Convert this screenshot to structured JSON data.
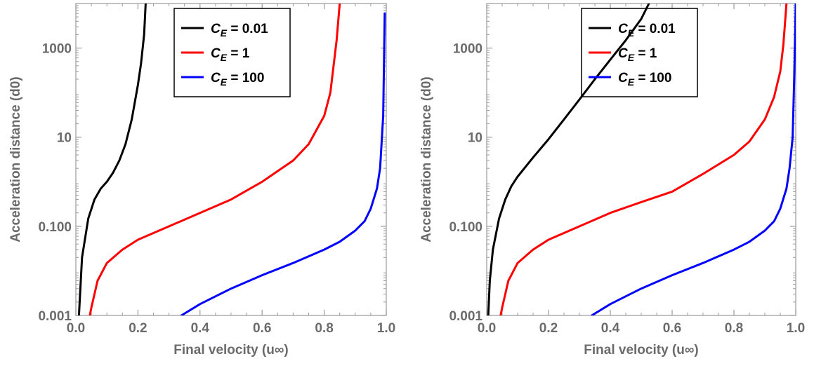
{
  "chart_data": [
    {
      "type": "line",
      "title": "",
      "xlabel": "Final velocity (u∞)",
      "ylabel": "Acceleration distance (d0)",
      "xlim": [
        0.0,
        1.0
      ],
      "ylim": [
        0.001,
        10000
      ],
      "yscale": "log",
      "x_ticks": [
        "0.0",
        "0.2",
        "0.4",
        "0.6",
        "0.8",
        "1.0"
      ],
      "y_ticks": [
        "0.001",
        "0.100",
        "10",
        "1000"
      ],
      "legend_position": "top-center",
      "grid": false,
      "series": [
        {
          "name": "C_E = 0.01",
          "color": "#000000",
          "x": [
            0.01,
            0.02,
            0.04,
            0.06,
            0.08,
            0.1,
            0.12,
            0.14,
            0.16,
            0.18,
            0.2,
            0.21,
            0.22,
            0.225
          ],
          "y": [
            0.001,
            0.02,
            0.15,
            0.4,
            0.7,
            1.0,
            1.6,
            3.0,
            7.0,
            25,
            150,
            450,
            2000,
            10000
          ]
        },
        {
          "name": "C_E = 1",
          "color": "#ff0000",
          "x": [
            0.045,
            0.05,
            0.07,
            0.1,
            0.15,
            0.2,
            0.3,
            0.4,
            0.5,
            0.6,
            0.7,
            0.75,
            0.8,
            0.82,
            0.84,
            0.85
          ],
          "y": [
            0.001,
            0.0015,
            0.006,
            0.015,
            0.03,
            0.05,
            0.1,
            0.2,
            0.4,
            1.0,
            3.0,
            7.0,
            30,
            100,
            1500,
            10000
          ]
        },
        {
          "name": "C_E = 100",
          "color": "#0000ff",
          "x": [
            0.34,
            0.4,
            0.5,
            0.6,
            0.7,
            0.8,
            0.85,
            0.9,
            0.93,
            0.95,
            0.97,
            0.98,
            0.99,
            0.995
          ],
          "y": [
            0.001,
            0.0018,
            0.004,
            0.008,
            0.015,
            0.03,
            0.045,
            0.08,
            0.13,
            0.25,
            0.7,
            2.0,
            30,
            6000
          ]
        }
      ],
      "legend": {
        "entries": [
          {
            "prefix": "C",
            "sub": "E",
            "value": " = 0.01"
          },
          {
            "prefix": "C",
            "sub": "E",
            "value": " = 1"
          },
          {
            "prefix": "C",
            "sub": "E",
            "value": " = 100"
          }
        ]
      }
    },
    {
      "type": "line",
      "title": "",
      "xlabel": "Final velocity (u∞)",
      "ylabel": "Acceleration distance (d0)",
      "xlim": [
        0.0,
        1.0
      ],
      "ylim": [
        0.001,
        10000
      ],
      "yscale": "log",
      "x_ticks": [
        "0.0",
        "0.2",
        "0.4",
        "0.6",
        "0.8",
        "1.0"
      ],
      "y_ticks": [
        "0.001",
        "0.100",
        "10",
        "1000"
      ],
      "legend_position": "top-center",
      "grid": false,
      "series": [
        {
          "name": "C_E = 0.01",
          "color": "#000000",
          "x": [
            0.005,
            0.01,
            0.02,
            0.04,
            0.06,
            0.08,
            0.1,
            0.15,
            0.2,
            0.25,
            0.3,
            0.35,
            0.4,
            0.45,
            0.5,
            0.525
          ],
          "y": [
            0.001,
            0.006,
            0.03,
            0.15,
            0.4,
            0.8,
            1.3,
            3.5,
            9.0,
            25,
            70,
            200,
            550,
            1500,
            4500,
            10000
          ]
        },
        {
          "name": "C_E = 1",
          "color": "#ff0000",
          "x": [
            0.045,
            0.05,
            0.07,
            0.1,
            0.15,
            0.2,
            0.3,
            0.4,
            0.5,
            0.6,
            0.7,
            0.8,
            0.85,
            0.9,
            0.93,
            0.95,
            0.96,
            0.97
          ],
          "y": [
            0.001,
            0.0015,
            0.006,
            0.015,
            0.03,
            0.05,
            0.1,
            0.2,
            0.35,
            0.6,
            1.5,
            4.0,
            8.0,
            25,
            80,
            300,
            1200,
            10000
          ]
        },
        {
          "name": "C_E = 100",
          "color": "#0000ff",
          "x": [
            0.34,
            0.4,
            0.5,
            0.6,
            0.7,
            0.8,
            0.85,
            0.9,
            0.93,
            0.95,
            0.97,
            0.98,
            0.99,
            0.995,
            1.0
          ],
          "y": [
            0.001,
            0.0018,
            0.004,
            0.008,
            0.015,
            0.03,
            0.045,
            0.08,
            0.13,
            0.25,
            0.7,
            2.0,
            10,
            200,
            10000
          ]
        }
      ],
      "legend": {
        "entries": [
          {
            "prefix": "C",
            "sub": "E",
            "value": " = 0.01"
          },
          {
            "prefix": "C",
            "sub": "E",
            "value": " = 1"
          },
          {
            "prefix": "C",
            "sub": "E",
            "value": " = 100"
          }
        ]
      }
    }
  ]
}
